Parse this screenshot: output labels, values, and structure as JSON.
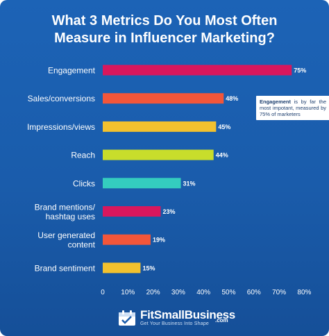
{
  "chart_data": {
    "type": "bar",
    "orientation": "horizontal",
    "title_lines": [
      "What 3 Metrics Do You Most Often",
      "Measure in Influencer Marketing?"
    ],
    "categories": [
      [
        "Engagement"
      ],
      [
        "Sales/conversions"
      ],
      [
        "Impressions/views"
      ],
      [
        "Reach"
      ],
      [
        "Clicks"
      ],
      [
        "Brand mentions/",
        "hashtag uses"
      ],
      [
        "User generated",
        "content"
      ],
      [
        "Brand sentiment"
      ]
    ],
    "values": [
      75,
      48,
      45,
      44,
      31,
      23,
      19,
      15
    ],
    "value_labels": [
      "75%",
      "48%",
      "45%",
      "44%",
      "31%",
      "23%",
      "19%",
      "15%"
    ],
    "bar_colors": [
      "#d8175d",
      "#f2563a",
      "#f2c12e",
      "#c8dd2b",
      "#34cdbf",
      "#d8175d",
      "#f2563a",
      "#f2c12e"
    ],
    "xlim": [
      0,
      80
    ],
    "x_ticks": [
      "0",
      "10%",
      "20%",
      "30%",
      "40%",
      "50%",
      "60%",
      "70%",
      "80%"
    ],
    "grid": false
  },
  "callout": {
    "bold": "Engagement",
    "rest": " is by far the most impotant, measured by 75% of marketers"
  },
  "logo": {
    "name": "FitSmallBusiness",
    "dotcom": ".com",
    "tagline": "Get Your Business Into Shape"
  },
  "colors": {
    "background": "#1a5cab",
    "text": "#ffffff"
  }
}
